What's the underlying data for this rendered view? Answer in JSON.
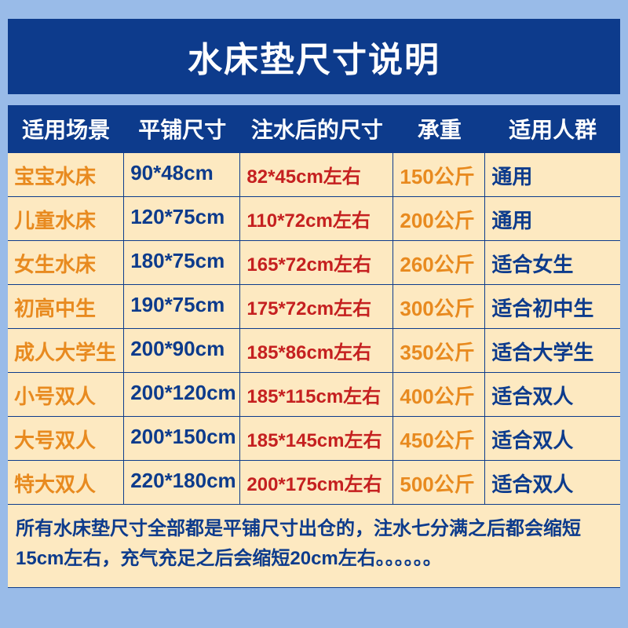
{
  "title": "水床垫尺寸说明",
  "colors": {
    "page_bg": "#99bbe8",
    "header_bg": "#0d3b8c",
    "header_text": "#ffffff",
    "cell_bg": "#fde9c1",
    "border": "#0d3b8c",
    "col1_text": "#e88a1f",
    "col2_text": "#0d3b8c",
    "col3_text": "#c52020",
    "col4_text": "#e88a1f",
    "col5_text": "#0d3b8c",
    "footer_text": "#0d3b8c"
  },
  "headers": {
    "c0": "适用场景",
    "c1": "平铺尺寸",
    "c2": "注水后的尺寸",
    "c3": "承重",
    "c4": "适用人群"
  },
  "rows": [
    {
      "c0": "宝宝水床",
      "c1": "90*48cm",
      "c2": "82*45cm左右",
      "c3": "150公斤",
      "c4": "通用"
    },
    {
      "c0": "儿童水床",
      "c1": "120*75cm",
      "c2": "110*72cm左右",
      "c3": "200公斤",
      "c4": "通用"
    },
    {
      "c0": "女生水床",
      "c1": "180*75cm",
      "c2": "165*72cm左右",
      "c3": "260公斤",
      "c4": "适合女生"
    },
    {
      "c0": "初高中生",
      "c1": "190*75cm",
      "c2": "175*72cm左右",
      "c3": "300公斤",
      "c4": "适合初中生"
    },
    {
      "c0": "成人大学生",
      "c1": "200*90cm",
      "c2": "185*86cm左右",
      "c3": "350公斤",
      "c4": "适合大学生"
    },
    {
      "c0": "小号双人",
      "c1": "200*120cm",
      "c2": "185*115cm左右",
      "c3": "400公斤",
      "c4": "适合双人"
    },
    {
      "c0": "大号双人",
      "c1": "200*150cm",
      "c2": "185*145cm左右",
      "c3": "450公斤",
      "c4": "适合双人"
    },
    {
      "c0": "特大双人",
      "c1": "220*180cm",
      "c2": "200*175cm左右",
      "c3": "500公斤",
      "c4": "适合双人"
    }
  ],
  "footer": "所有水床垫尺寸全部都是平铺尺寸出仓的，注水七分满之后都会缩短15cm左右，充气充足之后会缩短20cm左右。。。。。。"
}
